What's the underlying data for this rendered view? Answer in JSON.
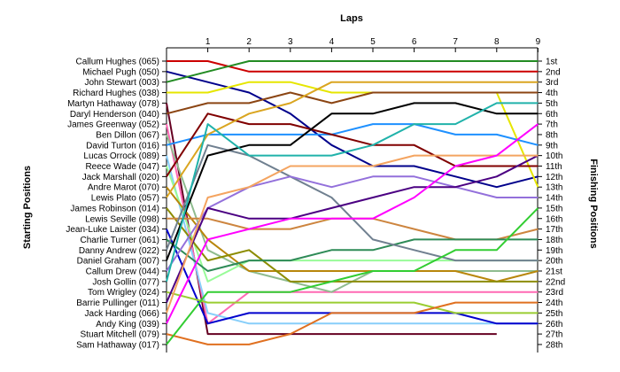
{
  "chart_data": {
    "type": "line",
    "title": "",
    "xlabel": "Laps",
    "ylabel_left": "Starting Positions",
    "ylabel_right": "Finishing Positions",
    "laps": [
      1,
      2,
      3,
      4,
      5,
      6,
      7,
      8,
      9
    ],
    "xlim": [
      0,
      9
    ],
    "ylim": [
      1,
      28
    ],
    "y_inverted": true,
    "grid": false,
    "starting_labels": [
      "Callum Hughes (065)",
      "Michael Pugh (050)",
      "John Stewart (003)",
      "Richard Hughes (038)",
      "Martyn Hathaway (078)",
      "Daryl Henderson (040)",
      "James Greenway (052)",
      "Ben Dillon (067)",
      "David Turton (016)",
      "Lucas Orrock (089)",
      "Reece Wade (047)",
      "Jack Marshall (020)",
      "Andre Marot (070)",
      "Lewis Plato (057)",
      "James Robinson (014)",
      "Lewis Seville (098)",
      "Jean-Luke Laister (034)",
      "Charlie Turner (061)",
      "Danny Andrew (022)",
      "Daniel Graham (007)",
      "Callum Drew (044)",
      "Josh Gollin (077)",
      "Tom Wrigley (024)",
      "Barrie Pullinger (011)",
      "Jack Harding (066)",
      "Andy King (039)",
      "Stuart Mitchell (079)",
      "Sam Hathaway (017)"
    ],
    "finishing_labels": [
      "1st",
      "2nd",
      "3rd",
      "4th",
      "5th",
      "6th",
      "7th",
      "8th",
      "9th",
      "10th",
      "11th",
      "12th",
      "13th",
      "14th",
      "15th",
      "16th",
      "17th",
      "18th",
      "19th",
      "20th",
      "21st",
      "22nd",
      "23rd",
      "24th",
      "25th",
      "26th",
      "27th",
      "28th"
    ],
    "series": [
      {
        "start": 1,
        "color": "#cc0000",
        "positions": [
          1,
          2,
          2,
          2,
          2,
          2,
          2,
          2,
          2
        ]
      },
      {
        "start": 2,
        "color": "#00008b",
        "positions": [
          3,
          4,
          6,
          9,
          11,
          11,
          12,
          13,
          12
        ]
      },
      {
        "start": 3,
        "color": "#228b22",
        "positions": [
          2,
          1,
          1,
          1,
          1,
          1,
          1,
          1,
          1
        ]
      },
      {
        "start": 4,
        "color": "#e6e600",
        "positions": [
          4,
          3,
          3,
          4,
          4,
          4,
          4,
          4,
          13
        ]
      },
      {
        "start": 5,
        "color": "#660022",
        "positions": [
          27,
          27,
          27,
          27,
          27,
          27,
          27,
          27
        ]
      },
      {
        "start": 6,
        "color": "#8b4513",
        "positions": [
          5,
          5,
          4,
          5,
          4,
          4,
          4,
          4,
          4
        ]
      },
      {
        "start": 7,
        "color": "#ff69b4",
        "positions": [
          26,
          23,
          23,
          23,
          23,
          23,
          23,
          23,
          23
        ]
      },
      {
        "start": 8,
        "color": "#8fbc8f",
        "positions": [
          19,
          21,
          22,
          23,
          21,
          21,
          21,
          21,
          21
        ]
      },
      {
        "start": 9,
        "color": "#1e90ff",
        "positions": [
          8,
          8,
          8,
          8,
          7,
          7,
          8,
          8,
          9
        ]
      },
      {
        "start": 10,
        "color": "#87cefa",
        "positions": [
          25,
          26,
          26,
          26,
          26,
          26,
          26,
          26,
          26
        ]
      },
      {
        "start": 11,
        "color": "#98fb98",
        "positions": [
          22,
          20,
          20,
          20,
          20,
          20,
          20,
          20,
          20
        ]
      },
      {
        "start": 12,
        "color": "#800000",
        "positions": [
          6,
          7,
          7,
          8,
          9,
          9,
          11,
          11,
          11
        ]
      },
      {
        "start": 13,
        "color": "#b8860b",
        "positions": [
          18,
          21,
          21,
          21,
          21,
          21,
          21,
          22,
          21
        ]
      },
      {
        "start": 14,
        "color": "#daa520",
        "positions": [
          8,
          6,
          5,
          3,
          3,
          3,
          3,
          3,
          3
        ]
      },
      {
        "start": 15,
        "color": "#8c8c00",
        "positions": [
          20,
          19,
          22,
          22,
          22,
          22,
          22,
          22,
          22
        ]
      },
      {
        "start": 16,
        "color": "#cd853f",
        "positions": [
          16,
          17,
          17,
          16,
          16,
          17,
          18,
          18,
          17
        ]
      },
      {
        "start": 17,
        "color": "#0000cd",
        "positions": [
          26,
          25,
          25,
          25,
          25,
          25,
          25,
          26,
          26
        ]
      },
      {
        "start": 18,
        "color": "#2e8b57",
        "positions": [
          21,
          20,
          20,
          19,
          19,
          18,
          18,
          18,
          18
        ]
      },
      {
        "start": 19,
        "color": "#708090",
        "positions": [
          9,
          10,
          12,
          14,
          18,
          19,
          20,
          20,
          20
        ]
      },
      {
        "start": 20,
        "color": "#000000",
        "positions": [
          10,
          9,
          9,
          6,
          6,
          5,
          5,
          6,
          6
        ]
      },
      {
        "start": 21,
        "color": "#9370db",
        "positions": [
          15,
          13,
          12,
          13,
          12,
          12,
          13,
          14,
          14
        ]
      },
      {
        "start": 22,
        "color": "#20b2aa",
        "positions": [
          7,
          10,
          10,
          10,
          9,
          7,
          7,
          5,
          5
        ]
      },
      {
        "start": 23,
        "color": "#9acd32",
        "positions": [
          24,
          24,
          24,
          24,
          24,
          24,
          25,
          25,
          25
        ]
      },
      {
        "start": 24,
        "color": "#4b0082",
        "positions": [
          15,
          16,
          16,
          15,
          14,
          13,
          13,
          12,
          10
        ]
      },
      {
        "start": 25,
        "color": "#f4a460",
        "positions": [
          14,
          13,
          11,
          11,
          11,
          10,
          10,
          10,
          10
        ]
      },
      {
        "start": 26,
        "color": "#ff00ff",
        "positions": [
          18,
          17,
          16,
          16,
          16,
          14,
          11,
          10,
          7
        ]
      },
      {
        "start": 27,
        "color": "#e07020",
        "positions": [
          28,
          28,
          27,
          25,
          25,
          25,
          24,
          24,
          24
        ]
      },
      {
        "start": 28,
        "color": "#32cd32",
        "positions": [
          23,
          23,
          23,
          22,
          21,
          21,
          19,
          19,
          15
        ]
      }
    ]
  }
}
